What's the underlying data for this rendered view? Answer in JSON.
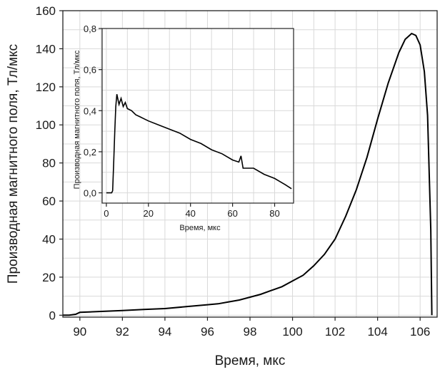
{
  "chart_data": [
    {
      "type": "line",
      "xlabel": "Время, мкс",
      "ylabel": "Производная магнитного поля, Тл/мкс",
      "xlim": [
        89.2,
        106.8
      ],
      "ylim": [
        -1,
        160
      ],
      "xticks": [
        "90",
        "92",
        "94",
        "96",
        "98",
        "100",
        "102",
        "104",
        "106"
      ],
      "yticks": [
        "0",
        "20",
        "40",
        "60",
        "80",
        "100",
        "120",
        "140",
        "160"
      ],
      "grid": true,
      "series": [
        {
          "color": "#000000",
          "x": [
            89.2,
            89.5,
            89.8,
            90.0,
            91.0,
            92.0,
            93.0,
            94.0,
            95.0,
            96.0,
            96.5,
            97.0,
            97.5,
            98.0,
            98.5,
            99.0,
            99.5,
            100.0,
            100.5,
            101.0,
            101.5,
            102.0,
            102.5,
            103.0,
            103.5,
            104.0,
            104.5,
            105.0,
            105.3,
            105.6,
            105.8,
            106.0,
            106.2,
            106.35,
            106.5,
            106.55
          ],
          "y": [
            0,
            0,
            0.5,
            1.5,
            2,
            2.5,
            3,
            3.5,
            4.5,
            5.5,
            6,
            7,
            8,
            9.5,
            11,
            13,
            15,
            18,
            21,
            26,
            32,
            40,
            52,
            66,
            83,
            103,
            122,
            138,
            145,
            148,
            147,
            142,
            128,
            105,
            45,
            0
          ]
        }
      ]
    },
    {
      "type": "line",
      "xlabel": "Время, мкс",
      "ylabel": "Производная магнитного поля, Тл/мкс",
      "xlim": [
        -2,
        89
      ],
      "ylim": [
        -0.05,
        0.8
      ],
      "xticks": [
        "0",
        "20",
        "40",
        "60",
        "80"
      ],
      "yticks": [
        "0,0",
        "0,2",
        "0,4",
        "0,6",
        "0,8"
      ],
      "grid": true,
      "series": [
        {
          "color": "#000000",
          "x": [
            0,
            2.5,
            3,
            3.5,
            4,
            4.5,
            5,
            6,
            7,
            8,
            9,
            10,
            12,
            14,
            16,
            18,
            20,
            25,
            30,
            35,
            40,
            45,
            50,
            55,
            60,
            63,
            64,
            65,
            70,
            75,
            80,
            85,
            88
          ],
          "y": [
            0,
            0,
            0.01,
            0.15,
            0.3,
            0.42,
            0.48,
            0.43,
            0.46,
            0.42,
            0.44,
            0.41,
            0.4,
            0.38,
            0.37,
            0.36,
            0.35,
            0.33,
            0.31,
            0.29,
            0.26,
            0.24,
            0.21,
            0.19,
            0.16,
            0.15,
            0.18,
            0.12,
            0.12,
            0.09,
            0.07,
            0.04,
            0.02
          ]
        }
      ]
    }
  ]
}
